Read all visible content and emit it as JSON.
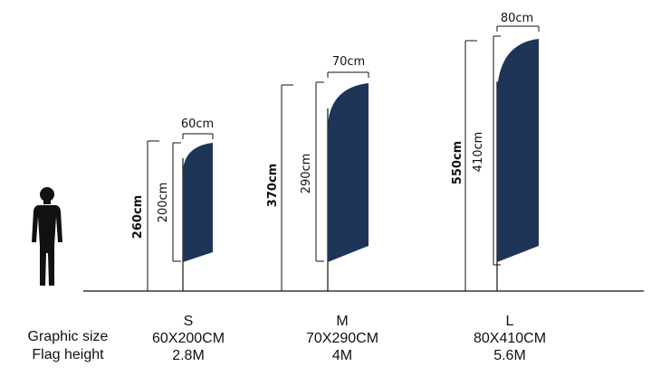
{
  "legend": {
    "graphic_size_label": "Graphic size",
    "flag_height_label": "Flag height"
  },
  "flags": [
    {
      "size_code": "S",
      "graphic_size": "60X200CM",
      "flag_height": "2.8M",
      "width_label": "60cm",
      "graphic_height_label": "200cm",
      "total_height_label": "260cm"
    },
    {
      "size_code": "M",
      "graphic_size": "70X290CM",
      "flag_height": "4M",
      "width_label": "70cm",
      "graphic_height_label": "290cm",
      "total_height_label": "370cm"
    },
    {
      "size_code": "L",
      "graphic_size": "80X410CM",
      "flag_height": "5.6M",
      "width_label": "80cm",
      "graphic_height_label": "410cm",
      "total_height_label": "550cm"
    }
  ],
  "colors": {
    "flag_fill": "#1e3557",
    "line": "#111111",
    "person": "#111111"
  },
  "icons": {
    "person": "human-silhouette-icon"
  }
}
